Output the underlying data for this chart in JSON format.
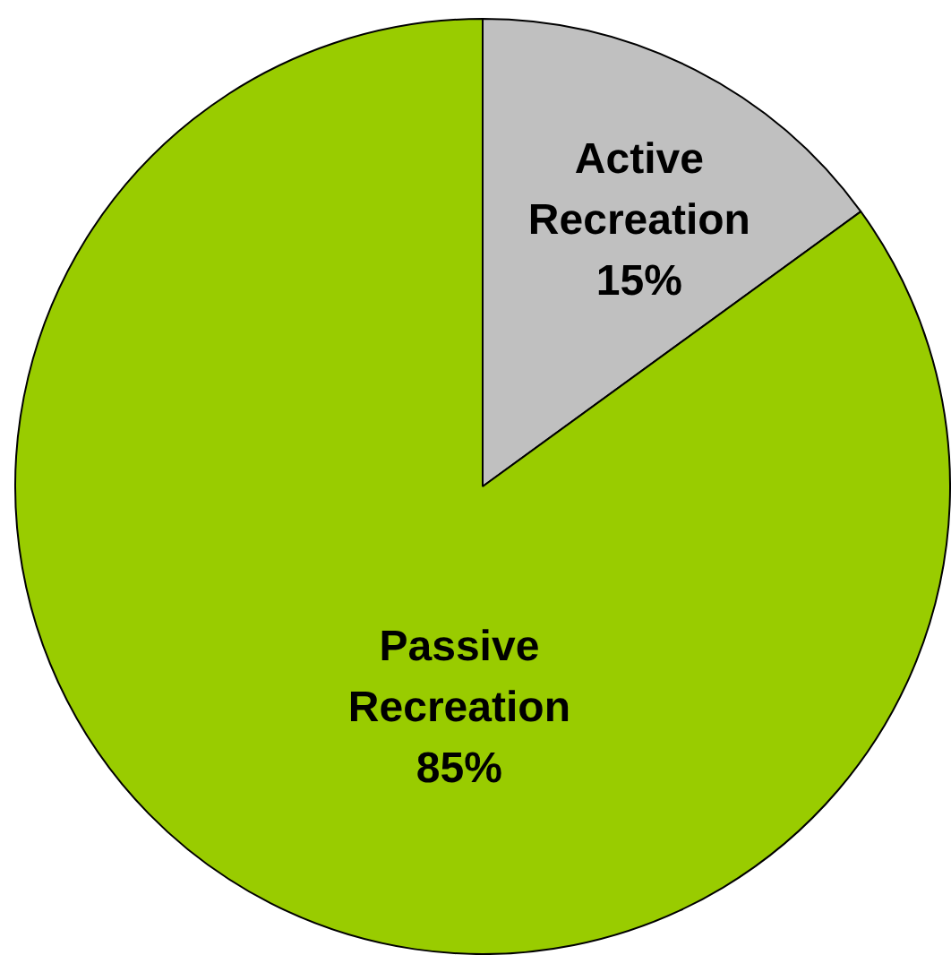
{
  "chart_data": {
    "type": "pie",
    "categories": [
      "Active Recreation",
      "Passive Recreation"
    ],
    "values": [
      15,
      85
    ],
    "value_labels": [
      "15%",
      "85%"
    ],
    "colors": [
      "#c0c0c0",
      "#99cc00"
    ]
  }
}
